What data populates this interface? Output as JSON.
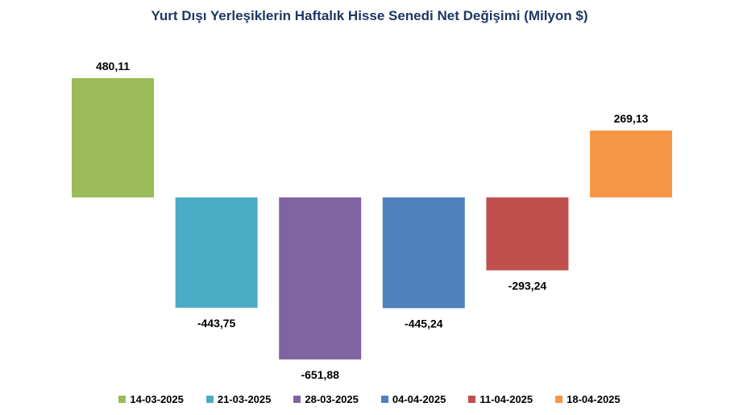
{
  "chart_data": {
    "type": "bar",
    "title": "Yurt Dışı Yerleşiklerin Haftalık Hisse Senedi Net Değişimi (Milyon $)",
    "xlabel": "",
    "ylabel": "",
    "grid": false,
    "legend_position": "bottom",
    "series": [
      {
        "name": "14-03-2025",
        "value": 480.11,
        "label": "480,11",
        "color": "#9bbb59"
      },
      {
        "name": "21-03-2025",
        "value": -443.75,
        "label": "-443,75",
        "color": "#4bacc6"
      },
      {
        "name": "28-03-2025",
        "value": -651.88,
        "label": "-651,88",
        "color": "#8064a2"
      },
      {
        "name": "04-04-2025",
        "value": -445.24,
        "label": "-445,24",
        "color": "#4f81bd"
      },
      {
        "name": "11-04-2025",
        "value": -293.24,
        "label": "-293,24",
        "color": "#c0504d"
      },
      {
        "name": "18-04-2025",
        "value": 269.13,
        "label": "269,13",
        "color": "#f79646"
      }
    ]
  }
}
